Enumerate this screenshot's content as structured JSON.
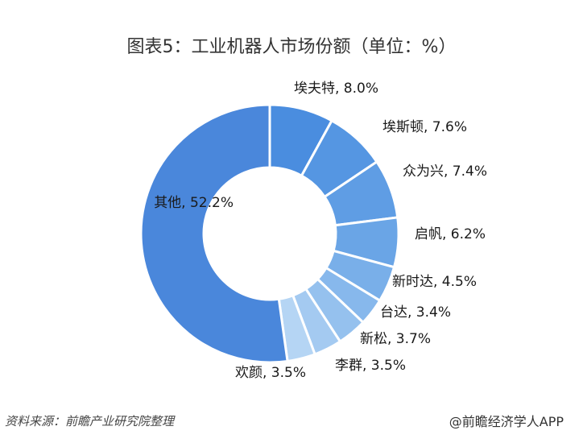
{
  "chart_data": {
    "type": "pie",
    "title": "图表5：工业机器人市场份额（单位：%）",
    "donut": true,
    "categories": [
      "埃夫特",
      "埃斯顿",
      "众为兴",
      "启帆",
      "新时达",
      "台达",
      "新松",
      "李群",
      "欢颜",
      "其他"
    ],
    "values": [
      8.0,
      7.6,
      7.4,
      6.2,
      4.5,
      3.4,
      3.7,
      3.5,
      3.5,
      52.2
    ],
    "labels": [
      "埃夫特, 8.0%",
      "埃斯顿, 7.6%",
      "众为兴, 7.4%",
      "启帆, 6.2%",
      "新时达, 4.5%",
      "台达, 3.4%",
      "新松, 3.7%",
      "李群, 3.5%",
      "欢颜, 3.5%",
      "其他, 52.2%"
    ],
    "colors": [
      "#4a8ddf",
      "#5596e2",
      "#5f9de4",
      "#6aa5e6",
      "#79afe9",
      "#87b8ec",
      "#95c1ee",
      "#a4caf1",
      "#b5d5f4",
      "#4a87db"
    ]
  },
  "footer": {
    "source": "资料来源：前瞻产业研究院整理",
    "credit": "@前瞻经济学人APP"
  }
}
